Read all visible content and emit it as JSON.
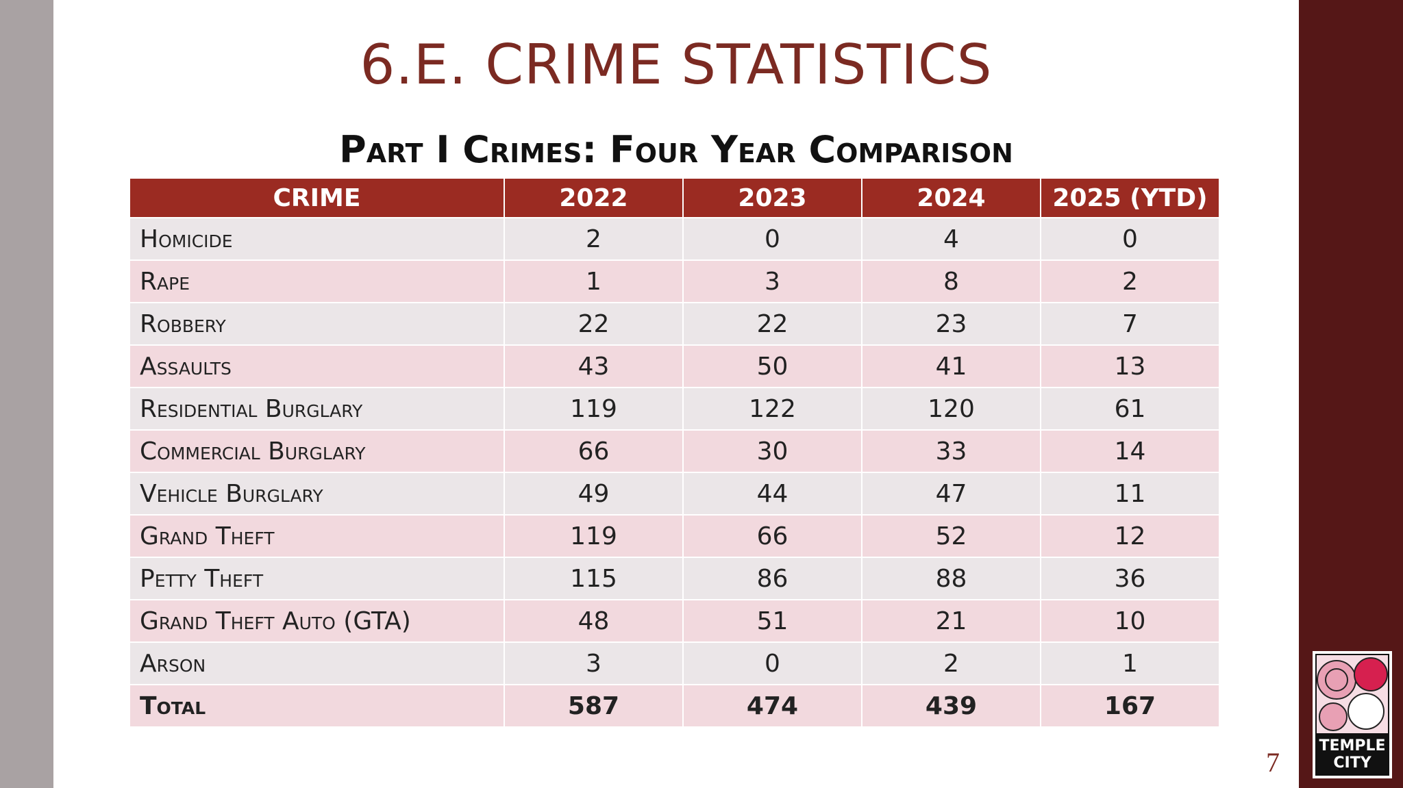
{
  "title": "6.E. CRIME STATISTICS",
  "subtitle": "Part I Crimes: Four Year Comparison",
  "table": {
    "header": [
      "CRIME",
      "2022",
      "2023",
      "2024",
      "2025 (YTD)"
    ],
    "rows": [
      [
        "Homicide",
        2,
        0,
        4,
        0
      ],
      [
        "Rape",
        1,
        3,
        8,
        2
      ],
      [
        "Robbery",
        22,
        22,
        23,
        7
      ],
      [
        "Assaults",
        43,
        50,
        41,
        13
      ],
      [
        "Residential Burglary",
        119,
        122,
        120,
        61
      ],
      [
        "Commercial Burglary",
        66,
        30,
        33,
        14
      ],
      [
        "Vehicle Burglary",
        49,
        44,
        47,
        11
      ],
      [
        "Grand Theft",
        119,
        66,
        52,
        12
      ],
      [
        "Petty Theft",
        115,
        86,
        88,
        36
      ],
      [
        "Grand Theft Auto (GTA)",
        48,
        51,
        21,
        10
      ],
      [
        "Arson",
        3,
        0,
        2,
        1
      ],
      [
        "Total",
        587,
        474,
        439,
        167
      ]
    ]
  },
  "logo": {
    "line1": "TEMPLE",
    "line2": "CITY"
  },
  "page_number": "7"
}
